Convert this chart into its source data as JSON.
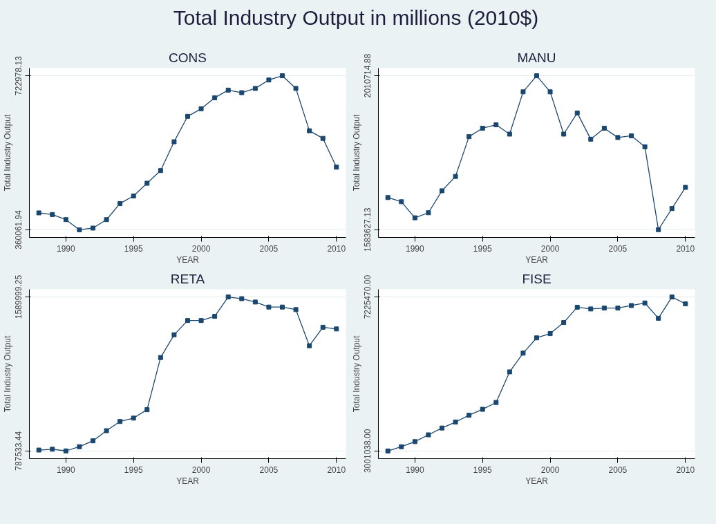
{
  "chart_data": [
    {
      "type": "other",
      "title": "Total Industry Output in millions (2010$)"
    },
    {
      "type": "line",
      "title": "CONS",
      "xlabel": "YEAR",
      "ylabel": "Total Industry Output",
      "marker": "square",
      "grid": "y",
      "x": [
        1988,
        1989,
        1990,
        1991,
        1992,
        1993,
        1994,
        1995,
        1996,
        1997,
        1998,
        1999,
        2000,
        2001,
        2002,
        2003,
        2004,
        2005,
        2006,
        2007,
        2008,
        2009,
        2010
      ],
      "series": [
        {
          "color": "#1a476f",
          "values": [
            399900,
            395950,
            384000,
            360061.94,
            364050,
            384000,
            421900,
            439800,
            469700,
            499600,
            567400,
            627300,
            645200,
            671100,
            689100,
            683100,
            693100,
            713000,
            722978.13,
            693100,
            593400,
            575400,
            507600
          ]
        }
      ],
      "xlim": [
        1987.3,
        2010.7
      ],
      "xticks": [
        1990,
        1995,
        2000,
        2005,
        2010
      ],
      "ylim": [
        342000,
        741000
      ],
      "yticks": [
        {
          "value": 360061.94,
          "label": "360061.94"
        },
        {
          "value": 722978.13,
          "label": "722978.13"
        }
      ]
    },
    {
      "type": "line",
      "title": "MANU",
      "xlabel": "YEAR",
      "ylabel": "Total Industry Output",
      "marker": "square",
      "grid": "y",
      "x": [
        1988,
        1989,
        1990,
        1991,
        1992,
        1993,
        1994,
        1995,
        1996,
        1997,
        1998,
        1999,
        2000,
        2001,
        2002,
        2003,
        2004,
        2005,
        2006,
        2007,
        2008,
        2009,
        2010
      ],
      "series": [
        {
          "color": "#1a476f",
          "values": [
            1672800,
            1661100,
            1616500,
            1630600,
            1691600,
            1731500,
            1841800,
            1865200,
            1874600,
            1848800,
            1966100,
            2010714.88,
            1966100,
            1848800,
            1907500,
            1834700,
            1865200,
            1839400,
            1844100,
            1813600,
            1583627.13,
            1642300,
            1701000
          ]
        }
      ],
      "xlim": [
        1987.3,
        2010.7
      ],
      "xticks": [
        1990,
        1995,
        2000,
        2005,
        2010
      ],
      "ylim": [
        1562000,
        2032000
      ],
      "yticks": [
        {
          "value": 1583627.13,
          "label": "1583627.13"
        },
        {
          "value": 2010714.88,
          "label": "2010714.88"
        }
      ]
    },
    {
      "type": "line",
      "title": "RETA",
      "xlabel": "YEAR",
      "ylabel": "Total Industry Output",
      "marker": "square",
      "grid": "y",
      "x": [
        1988,
        1989,
        1990,
        1991,
        1992,
        1993,
        1994,
        1995,
        1996,
        1997,
        1998,
        1999,
        2000,
        2001,
        2002,
        2003,
        2004,
        2005,
        2006,
        2007,
        2008,
        2009,
        2010
      ],
      "series": [
        {
          "color": "#1a476f",
          "values": [
            791900,
            796300,
            787533.44,
            809500,
            840100,
            892800,
            941000,
            958600,
            1002400,
            1274300,
            1392700,
            1467200,
            1467200,
            1489100,
            1589999.25,
            1581200,
            1563700,
            1537400,
            1537400,
            1524200,
            1335700,
            1432100,
            1423400
          ]
        }
      ],
      "xlim": [
        1987.3,
        2010.7
      ],
      "xticks": [
        1990,
        1995,
        2000,
        2005,
        2010
      ],
      "ylim": [
        747000,
        1630000
      ],
      "yticks": [
        {
          "value": 787533.44,
          "label": "787533.44"
        },
        {
          "value": 1589999.25,
          "label": "1589999.25"
        }
      ]
    },
    {
      "type": "line",
      "title": "FISE",
      "xlabel": "YEAR",
      "ylabel": "Total Industry Output",
      "marker": "square",
      "grid": "y",
      "x": [
        1988,
        1989,
        1990,
        1991,
        1992,
        1993,
        1994,
        1995,
        1996,
        1997,
        1998,
        1999,
        2000,
        2001,
        2002,
        2003,
        2004,
        2005,
        2006,
        2007,
        2008,
        2009,
        2010
      ],
      "series": [
        {
          "color": "#1a476f",
          "values": [
            3001038.0,
            3117700,
            3257800,
            3444500,
            3631200,
            3794600,
            3981300,
            4144700,
            4331400,
            5171600,
            5685000,
            6105100,
            6221800,
            6525200,
            6945300,
            6898700,
            6922000,
            6922000,
            6992000,
            7062000,
            6642000,
            7225470.0,
            7038700
          ]
        }
      ],
      "xlim": [
        1987.3,
        2010.7
      ],
      "xticks": [
        1990,
        1995,
        2000,
        2005,
        2010
      ],
      "ylim": [
        2790000,
        7437000
      ],
      "yticks": [
        {
          "value": 3001038.0,
          "label": "3001038.00"
        },
        {
          "value": 7225470.0,
          "label": "7225470.00"
        }
      ]
    }
  ]
}
